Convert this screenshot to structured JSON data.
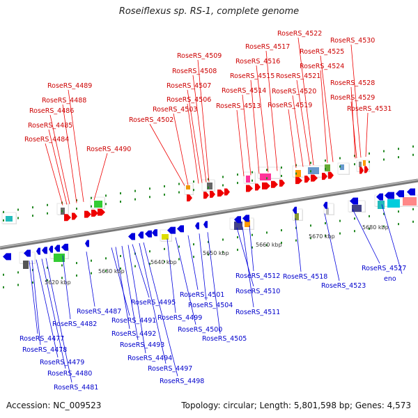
{
  "title": "Roseiflexus sp. RS-1, complete genome",
  "accession_label": "Accession: NC_009523",
  "summary_label": "Topology: circular; Length: 5,801,598 bp; Genes: 4,573",
  "colors": {
    "forward_gene": "#ee0000",
    "reverse_gene": "#0000dd",
    "forward_label": "#cc0000",
    "reverse_label": "#0000cc",
    "backbone": "#888888",
    "tick": "#228822"
  },
  "scale_labels": [
    "5620 kbp",
    "5630 kbp",
    "5640 kbp",
    "5650 kbp",
    "5660 kbp",
    "5670 kbp",
    "5680 kbp"
  ],
  "forward_genes": [
    "RoseRS_4484",
    "RoseRS_4485",
    "RoseRS_4486",
    "RoseRS_4488",
    "RoseRS_4489",
    "RoseRS_4490",
    "RoseRS_4502",
    "RoseRS_4503",
    "RoseRS_4506",
    "RoseRS_4507",
    "RoseRS_4508",
    "RoseRS_4509",
    "RoseRS_4513",
    "RoseRS_4514",
    "RoseRS_4515",
    "RoseRS_4516",
    "RoseRS_4517",
    "RoseRS_4519",
    "RoseRS_4520",
    "RoseRS_4521",
    "RoseRS_4522",
    "RoseRS_4524",
    "RoseRS_4525",
    "RoseRS_4528",
    "RoseRS_4529",
    "RoseRS_4530",
    "RoseRS_4531"
  ],
  "reverse_genes": [
    "RoseRS_4477",
    "RoseRS_4478",
    "RoseRS_4479",
    "RoseRS_4480",
    "RoseRS_4481",
    "RoseRS_4482",
    "RoseRS_4487",
    "RoseRS_4491",
    "RoseRS_4492",
    "RoseRS_4493",
    "RoseRS_4494",
    "RoseRS_4495",
    "RoseRS_4497",
    "RoseRS_4498",
    "RoseRS_4499",
    "RoseRS_4500",
    "RoseRS_4501",
    "RoseRS_4504",
    "RoseRS_4505",
    "RoseRS_4510",
    "RoseRS_4511",
    "RoseRS_4512",
    "RoseRS_4518",
    "RoseRS_4523",
    "RoseRS_4527",
    "eno"
  ]
}
